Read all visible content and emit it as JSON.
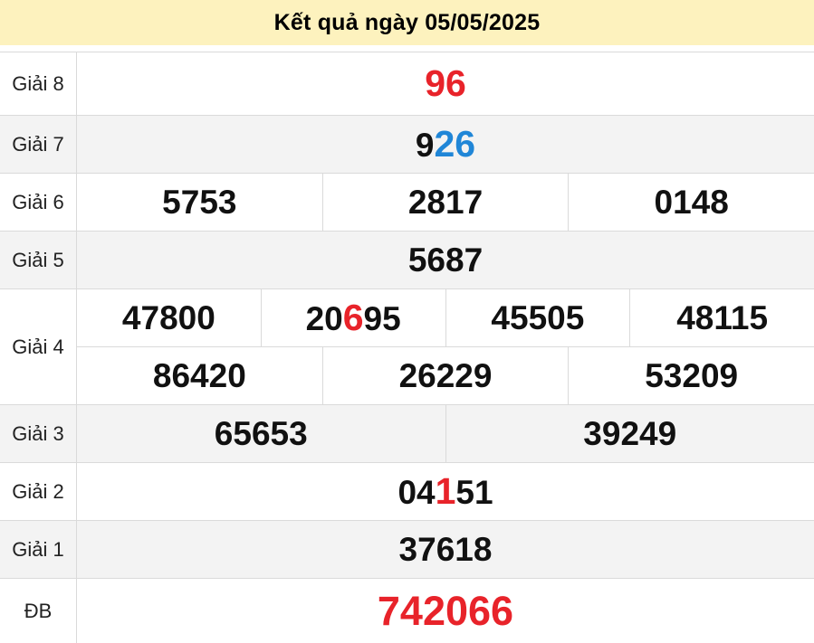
{
  "header": {
    "title": "Kết quả ngày 05/05/2025"
  },
  "colors": {
    "header_bg": "#fdf2be",
    "row_shade": "#f3f3f3",
    "border": "#dadada",
    "red": "#e8232a",
    "blue": "#2086d7",
    "text": "#111111"
  },
  "table": {
    "rows": [
      {
        "label": "Giải 8",
        "shade": false,
        "lines": [
          [
            [
              {
                "t": "96",
                "c": "red",
                "big": true
              }
            ]
          ]
        ]
      },
      {
        "label": "Giải 7",
        "shade": true,
        "lines": [
          [
            [
              {
                "t": "9"
              },
              {
                "t": "26",
                "c": "blue",
                "big": true
              }
            ]
          ]
        ]
      },
      {
        "label": "Giải 6",
        "shade": false,
        "lines": [
          [
            [
              {
                "t": "5753"
              }
            ],
            [
              {
                "t": "2817"
              }
            ],
            [
              {
                "t": "0148"
              }
            ]
          ]
        ]
      },
      {
        "label": "Giải 5",
        "shade": true,
        "lines": [
          [
            [
              {
                "t": "5687"
              }
            ]
          ]
        ]
      },
      {
        "label": "Giải 4",
        "shade": false,
        "lines": [
          [
            [
              {
                "t": "47800"
              }
            ],
            [
              {
                "t": "20"
              },
              {
                "t": "6",
                "c": "red",
                "big": true
              },
              {
                "t": "95"
              }
            ],
            [
              {
                "t": "45505"
              }
            ],
            [
              {
                "t": "48115"
              }
            ]
          ],
          [
            [
              {
                "t": "86420"
              }
            ],
            [
              {
                "t": "26229"
              }
            ],
            [
              {
                "t": "53209"
              }
            ]
          ]
        ]
      },
      {
        "label": "Giải 3",
        "shade": true,
        "lines": [
          [
            [
              {
                "t": "65653"
              }
            ],
            [
              {
                "t": "39249"
              }
            ]
          ]
        ]
      },
      {
        "label": "Giải 2",
        "shade": false,
        "lines": [
          [
            [
              {
                "t": "04"
              },
              {
                "t": "1",
                "c": "red",
                "big": true
              },
              {
                "t": "51"
              }
            ]
          ]
        ]
      },
      {
        "label": "Giải 1",
        "shade": true,
        "lines": [
          [
            [
              {
                "t": "37618"
              }
            ]
          ]
        ]
      },
      {
        "label": "ĐB",
        "shade": false,
        "lines": [
          [
            [
              {
                "t": "742066",
                "c": "red",
                "xl": true
              }
            ]
          ]
        ]
      }
    ]
  }
}
